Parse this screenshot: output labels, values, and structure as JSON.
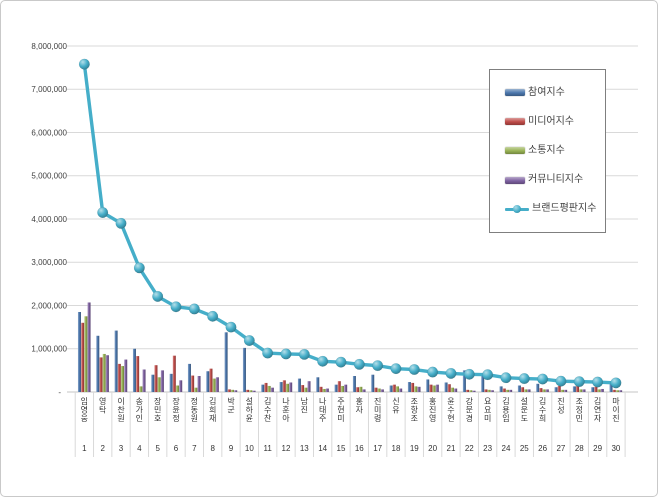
{
  "page": {
    "background": "#ffffff",
    "border_color": "#c9c9c9"
  },
  "legend": {
    "position": "top-right-overlay",
    "border_color": "#7f7f7f"
  },
  "chart_data": {
    "type": "bar",
    "subtype": "grouped-bars-with-line-overlay",
    "title": "",
    "grid": true,
    "legend_position": "top-right-overlay",
    "categories": [
      "임영웅",
      "영탁",
      "이찬원",
      "송가인",
      "장민호",
      "장윤정",
      "정동원",
      "김희재",
      "박군",
      "설하윤",
      "김수찬",
      "나훈아",
      "남진",
      "나태주",
      "주현미",
      "홍자",
      "진미령",
      "신유",
      "조항조",
      "홍진영",
      "윤수현",
      "강문경",
      "요요미",
      "김용임",
      "설운도",
      "김수희",
      "진성",
      "조정민",
      "김연자",
      "마이진"
    ],
    "rank_labels": [
      "1",
      "2",
      "3",
      "4",
      "5",
      "6",
      "7",
      "8",
      "9",
      "10",
      "11",
      "12",
      "13",
      "14",
      "15",
      "16",
      "17",
      "18",
      "19",
      "20",
      "21",
      "22",
      "23",
      "24",
      "25",
      "26",
      "27",
      "28",
      "29",
      "30"
    ],
    "y_axis": {
      "min": 0,
      "max": 8000000,
      "grid_interval": 1000000,
      "tick_labels": [
        "8,000,000",
        "7,000,000",
        "6,000,000",
        "5,000,000",
        "4,000,000",
        "3,000,000",
        "2,000,000",
        "1,000,000",
        "-"
      ]
    },
    "series": [
      {
        "name": "참여지수",
        "type": "bar",
        "color": "#4B76AC",
        "values": [
          1850000,
          1300000,
          1420000,
          1000000,
          400000,
          420000,
          650000,
          480000,
          1380000,
          1020000,
          170000,
          230000,
          310000,
          340000,
          170000,
          370000,
          400000,
          150000,
          230000,
          290000,
          220000,
          500000,
          420000,
          130000,
          150000,
          190000,
          110000,
          130000,
          110000,
          250000
        ]
      },
      {
        "name": "미디어지수",
        "type": "bar",
        "color": "#BE4B48",
        "values": [
          1600000,
          800000,
          650000,
          830000,
          620000,
          840000,
          380000,
          540000,
          60000,
          50000,
          210000,
          270000,
          160000,
          120000,
          250000,
          110000,
          100000,
          170000,
          210000,
          170000,
          180000,
          50000,
          60000,
          80000,
          110000,
          90000,
          140000,
          170000,
          120000,
          50000
        ]
      },
      {
        "name": "소통지수",
        "type": "bar",
        "color": "#98B254",
        "values": [
          1750000,
          880000,
          600000,
          130000,
          340000,
          150000,
          100000,
          310000,
          50000,
          40000,
          140000,
          190000,
          100000,
          70000,
          140000,
          120000,
          80000,
          130000,
          130000,
          150000,
          100000,
          40000,
          50000,
          50000,
          60000,
          60000,
          50000,
          60000,
          60000,
          40000
        ]
      },
      {
        "name": "커뮤니티지수",
        "type": "bar",
        "color": "#7D60A0",
        "values": [
          2070000,
          850000,
          750000,
          520000,
          500000,
          270000,
          370000,
          340000,
          40000,
          30000,
          100000,
          220000,
          250000,
          80000,
          170000,
          60000,
          60000,
          80000,
          120000,
          170000,
          80000,
          30000,
          40000,
          50000,
          60000,
          60000,
          50000,
          60000,
          70000,
          40000
        ]
      },
      {
        "name": "브랜드평판지수",
        "type": "line",
        "color": "#45AEC9",
        "values": [
          7580000,
          4150000,
          3900000,
          2870000,
          2210000,
          1970000,
          1920000,
          1750000,
          1500000,
          1190000,
          900000,
          880000,
          870000,
          710000,
          690000,
          640000,
          610000,
          540000,
          520000,
          460000,
          430000,
          410000,
          400000,
          330000,
          310000,
          300000,
          250000,
          240000,
          230000,
          210000
        ]
      }
    ]
  }
}
